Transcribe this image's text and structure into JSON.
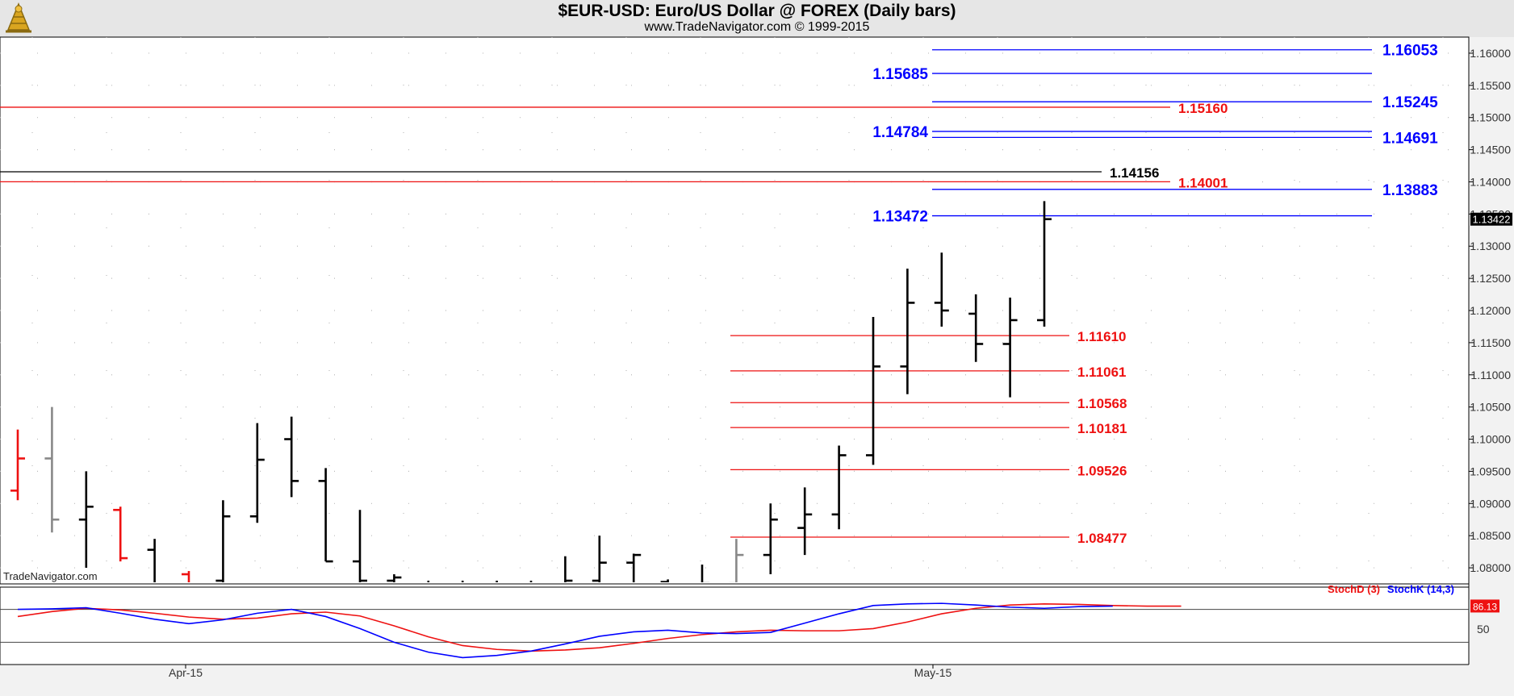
{
  "header": {
    "title": "$EUR-USD:  Euro/US Dollar @ FOREX  (Daily bars)",
    "subtitle": "www.TradeNavigator.com © 1999-2015"
  },
  "watermark": "TradeNavigator.com",
  "colors": {
    "blue": "#0000ff",
    "red": "#ee1111",
    "black": "#000000",
    "gray": "#888888",
    "grid": "#bbbbbb"
  },
  "chart_data": [
    {
      "type": "ohlc",
      "title": "$EUR-USD:  Euro/US Dollar @ FOREX  (Daily bars)",
      "ylim": [
        1.0775,
        1.1625
      ],
      "y_ticks": [
        "1.16000",
        "1.15500",
        "1.15000",
        "1.14500",
        "1.14000",
        "1.13500",
        "1.13000",
        "1.12500",
        "1.12000",
        "1.11500",
        "1.11000",
        "1.10500",
        "1.10000",
        "1.09500",
        "1.09000",
        "1.08500",
        "1.08000"
      ],
      "x_tick_labels": [
        "Apr-15",
        "May-15"
      ],
      "last_price": "1.13422",
      "bars": [
        {
          "o": 1.092,
          "h": 1.1015,
          "l": 1.0905,
          "c": 1.097,
          "color": "red"
        },
        {
          "o": 1.097,
          "h": 1.105,
          "l": 1.0855,
          "c": 1.0875,
          "color": "gray"
        },
        {
          "o": 1.0875,
          "h": 1.095,
          "l": 1.08,
          "c": 1.0895,
          "color": "black"
        },
        {
          "o": 1.089,
          "h": 1.0895,
          "l": 1.081,
          "c": 1.0815,
          "color": "red"
        },
        {
          "o": 1.0828,
          "h": 1.0845,
          "l": 1.077,
          "c": 1.077,
          "color": "black"
        },
        {
          "o": 1.079,
          "h": 1.0795,
          "l": 1.077,
          "c": 1.077,
          "color": "red"
        },
        {
          "o": 1.078,
          "h": 1.0905,
          "l": 1.077,
          "c": 1.088,
          "color": "black"
        },
        {
          "o": 1.088,
          "h": 1.1025,
          "l": 1.087,
          "c": 1.0968,
          "color": "black"
        },
        {
          "o": 1.1,
          "h": 1.1035,
          "l": 1.091,
          "c": 1.0935,
          "color": "black"
        },
        {
          "o": 1.0935,
          "h": 1.0955,
          "l": 1.081,
          "c": 1.081,
          "color": "black"
        },
        {
          "o": 1.081,
          "h": 1.089,
          "l": 1.0775,
          "c": 1.078,
          "color": "black"
        },
        {
          "o": 1.078,
          "h": 1.079,
          "l": 1.077,
          "c": 1.0785,
          "color": "black"
        },
        {
          "o": 1.077,
          "h": 1.078,
          "l": 1.077,
          "c": 1.0775,
          "color": "black"
        },
        {
          "o": 1.0775,
          "h": 1.078,
          "l": 1.077,
          "c": 1.0772,
          "color": "black"
        },
        {
          "o": 1.0772,
          "h": 1.078,
          "l": 1.077,
          "c": 1.0774,
          "color": "black"
        },
        {
          "o": 1.0774,
          "h": 1.078,
          "l": 1.077,
          "c": 1.0772,
          "color": "black"
        },
        {
          "o": 1.0772,
          "h": 1.0818,
          "l": 1.077,
          "c": 1.078,
          "color": "black"
        },
        {
          "o": 1.078,
          "h": 1.085,
          "l": 1.0775,
          "c": 1.0808,
          "color": "black"
        },
        {
          "o": 1.0808,
          "h": 1.0822,
          "l": 1.077,
          "c": 1.082,
          "color": "black"
        },
        {
          "o": 1.0778,
          "h": 1.0782,
          "l": 1.077,
          "c": 1.0775,
          "color": "black"
        },
        {
          "o": 1.0775,
          "h": 1.0805,
          "l": 1.077,
          "c": 1.0776,
          "color": "black"
        },
        {
          "o": 1.0776,
          "h": 1.0845,
          "l": 1.077,
          "c": 1.082,
          "color": "gray"
        },
        {
          "o": 1.082,
          "h": 1.09,
          "l": 1.079,
          "c": 1.0875,
          "color": "black"
        },
        {
          "o": 1.0862,
          "h": 1.0925,
          "l": 1.082,
          "c": 1.0883,
          "color": "black"
        },
        {
          "o": 1.0883,
          "h": 1.099,
          "l": 1.086,
          "c": 1.0975,
          "color": "black"
        },
        {
          "o": 1.0975,
          "h": 1.119,
          "l": 1.096,
          "c": 1.1113,
          "color": "black"
        },
        {
          "o": 1.1113,
          "h": 1.1265,
          "l": 1.107,
          "c": 1.1212,
          "color": "black"
        },
        {
          "o": 1.1212,
          "h": 1.129,
          "l": 1.1175,
          "c": 1.12,
          "color": "black"
        },
        {
          "o": 1.1195,
          "h": 1.1225,
          "l": 1.112,
          "c": 1.1148,
          "color": "black"
        },
        {
          "o": 1.1148,
          "h": 1.122,
          "l": 1.1065,
          "c": 1.1185,
          "color": "black"
        },
        {
          "o": 1.1185,
          "h": 1.137,
          "l": 1.1175,
          "c": 1.1342,
          "color": "black"
        }
      ],
      "levels": [
        {
          "value": 1.16053,
          "label": "1.16053",
          "color": "blue",
          "side": "right"
        },
        {
          "value": 1.15685,
          "label": "1.15685",
          "color": "blue",
          "side": "left"
        },
        {
          "value": 1.15245,
          "label": "1.15245",
          "color": "blue",
          "side": "right"
        },
        {
          "value": 1.1516,
          "label": "1.15160",
          "color": "red",
          "side": "right"
        },
        {
          "value": 1.14784,
          "label": "1.14784",
          "color": "blue",
          "side": "left"
        },
        {
          "value": 1.14691,
          "label": "1.14691",
          "color": "blue",
          "side": "right"
        },
        {
          "value": 1.14156,
          "label": "1.14156",
          "color": "black",
          "side": "right"
        },
        {
          "value": 1.14001,
          "label": "1.14001",
          "color": "red",
          "side": "right"
        },
        {
          "value": 1.13883,
          "label": "1.13883",
          "color": "blue",
          "side": "right"
        },
        {
          "value": 1.13472,
          "label": "1.13472",
          "color": "blue",
          "side": "left"
        },
        {
          "value": 1.1161,
          "label": "1.11610",
          "color": "red",
          "side": "right"
        },
        {
          "value": 1.11061,
          "label": "1.11061",
          "color": "red",
          "side": "right"
        },
        {
          "value": 1.10568,
          "label": "1.10568",
          "color": "red",
          "side": "right"
        },
        {
          "value": 1.10181,
          "label": "1.10181",
          "color": "red",
          "side": "right"
        },
        {
          "value": 1.09526,
          "label": "1.09526",
          "color": "red",
          "side": "right"
        },
        {
          "value": 1.08477,
          "label": "1.08477",
          "color": "red",
          "side": "right"
        }
      ]
    },
    {
      "type": "line",
      "legend": [
        "StochD (3)",
        "StochK (14,3)"
      ],
      "ylim": [
        0,
        100
      ],
      "y_ticks": [
        "50"
      ],
      "last_value": "86.13",
      "series": [
        {
          "name": "StochD (3)",
          "color": "red",
          "values": [
            67,
            76,
            82,
            79,
            73,
            66,
            62,
            64,
            72,
            75,
            68,
            50,
            30,
            14,
            7,
            4,
            6,
            10,
            18,
            27,
            34,
            39,
            42,
            41,
            41,
            45,
            57,
            72,
            82,
            88,
            90,
            89,
            87,
            86,
            86
          ]
        },
        {
          "name": "StochK (14,3)",
          "color": "blue",
          "values": [
            80,
            81,
            83,
            73,
            62,
            54,
            61,
            73,
            80,
            67,
            45,
            20,
            2,
            -8,
            -4,
            4,
            17,
            31,
            39,
            42,
            37,
            36,
            38,
            55,
            72,
            87,
            90,
            91,
            88,
            84,
            82,
            85,
            86
          ]
        }
      ]
    }
  ]
}
